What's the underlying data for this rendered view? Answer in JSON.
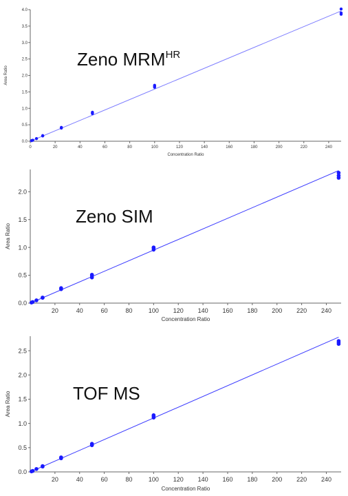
{
  "chart_data": [
    {
      "type": "scatter",
      "overlay_title": "Zeno MRM",
      "overlay_sup": "HR",
      "xlabel": "Concentration Ratio",
      "ylabel": "Area Ratio",
      "xlim": [
        0,
        250
      ],
      "ylim": [
        0,
        4.0
      ],
      "xticks": [
        0,
        20,
        40,
        60,
        80,
        100,
        120,
        140,
        160,
        180,
        200,
        220,
        240
      ],
      "yticks": [
        "0.0",
        "0.5",
        "1.0",
        "1.5",
        "2.0",
        "2.5",
        "3.0",
        "3.5",
        "4.0"
      ],
      "ytick_values": [
        0,
        0.5,
        1.0,
        1.5,
        2.0,
        2.5,
        3.0,
        3.5,
        4.0
      ],
      "fit_line": {
        "x": [
          0,
          250
        ],
        "y": [
          0,
          3.96
        ]
      },
      "points": [
        {
          "x": 1,
          "y": 0.016
        },
        {
          "x": 2,
          "y": 0.03
        },
        {
          "x": 5,
          "y": 0.08
        },
        {
          "x": 10,
          "y": 0.16
        },
        {
          "x": 10,
          "y": 0.17
        },
        {
          "x": 25,
          "y": 0.4
        },
        {
          "x": 25,
          "y": 0.42
        },
        {
          "x": 50,
          "y": 0.84
        },
        {
          "x": 50,
          "y": 0.86
        },
        {
          "x": 50,
          "y": 0.88
        },
        {
          "x": 100,
          "y": 1.64
        },
        {
          "x": 100,
          "y": 1.67
        },
        {
          "x": 100,
          "y": 1.7
        },
        {
          "x": 250,
          "y": 3.86
        },
        {
          "x": 250,
          "y": 3.9
        },
        {
          "x": 250,
          "y": 4.02
        }
      ],
      "color": "#1a1aff",
      "line_color": "#7b7bff"
    },
    {
      "type": "scatter",
      "overlay_title": "Zeno SIM",
      "overlay_sup": "",
      "xlabel": "Concentration Ratio",
      "ylabel": "Area Ratio",
      "xlim": [
        0,
        252
      ],
      "ylim": [
        0,
        2.4
      ],
      "xticks": [
        20,
        40,
        60,
        80,
        100,
        120,
        140,
        160,
        180,
        200,
        220,
        240
      ],
      "yticks": [
        "0.0",
        "0.5",
        "1.0",
        "1.5",
        "2.0"
      ],
      "ytick_values": [
        0,
        0.5,
        1.0,
        1.5,
        2.0
      ],
      "fit_line": {
        "x": [
          0,
          250
        ],
        "y": [
          0,
          2.38
        ]
      },
      "points": [
        {
          "x": 1,
          "y": 0.01
        },
        {
          "x": 2,
          "y": 0.02
        },
        {
          "x": 5,
          "y": 0.05
        },
        {
          "x": 10,
          "y": 0.095
        },
        {
          "x": 10,
          "y": 0.1
        },
        {
          "x": 25,
          "y": 0.25
        },
        {
          "x": 25,
          "y": 0.27
        },
        {
          "x": 50,
          "y": 0.46
        },
        {
          "x": 50,
          "y": 0.49
        },
        {
          "x": 50,
          "y": 0.51
        },
        {
          "x": 100,
          "y": 0.96
        },
        {
          "x": 100,
          "y": 0.99
        },
        {
          "x": 100,
          "y": 1.0
        },
        {
          "x": 250,
          "y": 2.25
        },
        {
          "x": 250,
          "y": 2.29
        },
        {
          "x": 250,
          "y": 2.34
        }
      ],
      "color": "#1a1aff",
      "line_color": "#3a3aff"
    },
    {
      "type": "scatter",
      "overlay_title": "TOF MS",
      "overlay_sup": "",
      "xlabel": "Concentration Ratio",
      "ylabel": "Area Ratio",
      "xlim": [
        0,
        252
      ],
      "ylim": [
        0,
        2.8
      ],
      "xticks": [
        20,
        40,
        60,
        80,
        100,
        120,
        140,
        160,
        180,
        200,
        220,
        240
      ],
      "yticks": [
        "0.0",
        "0.5",
        "1.0",
        "1.5",
        "2.0",
        "2.5"
      ],
      "ytick_values": [
        0,
        0.5,
        1.0,
        1.5,
        2.0,
        2.5
      ],
      "fit_line": {
        "x": [
          0,
          250
        ],
        "y": [
          0,
          2.78
        ]
      },
      "points": [
        {
          "x": 1,
          "y": 0.01
        },
        {
          "x": 2,
          "y": 0.02
        },
        {
          "x": 5,
          "y": 0.06
        },
        {
          "x": 10,
          "y": 0.11
        },
        {
          "x": 10,
          "y": 0.12
        },
        {
          "x": 25,
          "y": 0.28
        },
        {
          "x": 25,
          "y": 0.3
        },
        {
          "x": 50,
          "y": 0.55
        },
        {
          "x": 50,
          "y": 0.57
        },
        {
          "x": 50,
          "y": 0.58
        },
        {
          "x": 100,
          "y": 1.12
        },
        {
          "x": 100,
          "y": 1.15
        },
        {
          "x": 100,
          "y": 1.17
        },
        {
          "x": 250,
          "y": 2.64
        },
        {
          "x": 250,
          "y": 2.67
        },
        {
          "x": 250,
          "y": 2.7
        }
      ],
      "color": "#1a1aff",
      "line_color": "#3a3aff"
    }
  ]
}
